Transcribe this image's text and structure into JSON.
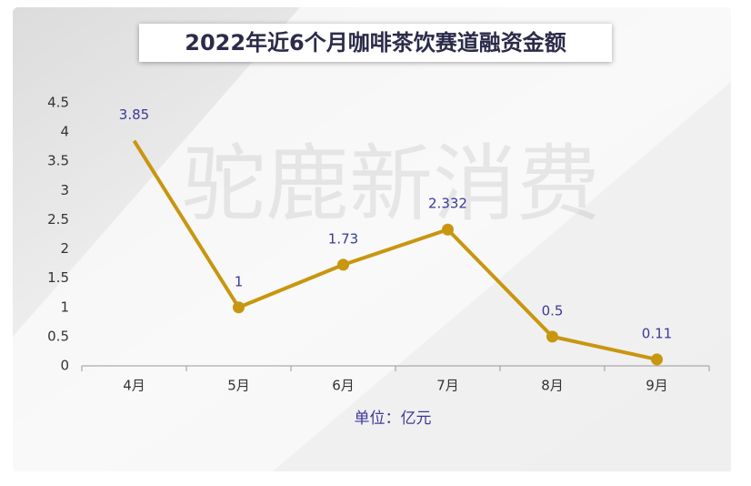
{
  "chart_data": {
    "type": "line",
    "title": "2022年近6个月咖啡茶饮赛道融资金额",
    "watermark": "驼鹿新消费",
    "x_label": "单位：亿元",
    "categories": [
      "4月",
      "5月",
      "6月",
      "7月",
      "8月",
      "9月"
    ],
    "values": [
      3.85,
      1,
      1.73,
      2.332,
      0.5,
      0.11
    ],
    "color": "#c8960f",
    "ylim": [
      0,
      4.5
    ],
    "yticks": [
      0,
      0.5,
      1,
      1.5,
      2,
      2.5,
      3,
      3.5,
      4,
      4.5
    ]
  }
}
